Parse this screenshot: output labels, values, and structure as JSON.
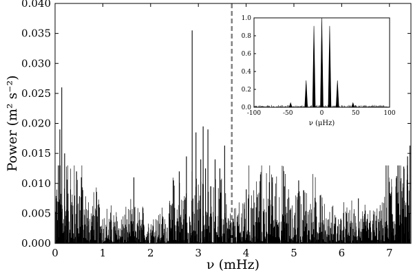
{
  "chart_data": [
    {
      "type": "line",
      "xlabel": "ν (mHz)",
      "ylabel": "Power (m² s⁻²)",
      "xlim": [
        0,
        7.45
      ],
      "ylim": [
        0,
        0.04
      ],
      "xticks": [
        0,
        1,
        2,
        3,
        4,
        5,
        6,
        7
      ],
      "yticks": [
        0.0,
        0.005,
        0.01,
        0.015,
        0.02,
        0.025,
        0.03,
        0.035,
        0.04
      ],
      "ytick_labels": [
        "0.000",
        "0.005",
        "0.010",
        "0.015",
        "0.020",
        "0.025",
        "0.030",
        "0.035",
        "0.040"
      ],
      "grid": false,
      "vertical_marker": {
        "x": 3.7,
        "style": "dashed",
        "color": "#808080"
      },
      "series": [
        {
          "color": "#000000",
          "x": [
            0.1,
            0.14,
            0.2,
            0.45,
            0.55,
            1.65,
            2.48,
            2.6,
            2.75,
            2.87,
            2.95,
            3.05,
            3.1,
            3.15,
            3.2,
            3.35,
            3.45,
            3.55,
            4.3,
            4.55,
            4.8,
            5.1,
            5.55,
            6.35,
            7.15,
            7.3,
            7.38,
            7.43
          ],
          "y": [
            0.019,
            0.026,
            0.015,
            0.012,
            0.011,
            0.011,
            0.0105,
            0.012,
            0.0145,
            0.0355,
            0.0185,
            0.014,
            0.0195,
            0.0125,
            0.019,
            0.014,
            0.0125,
            0.0163,
            0.0115,
            0.011,
            0.0095,
            0.0105,
            0.008,
            0.0075,
            0.0112,
            0.0128,
            0.0145,
            0.0163
          ]
        }
      ]
    },
    {
      "type": "line",
      "xlabel": "ν (μHz)",
      "ylabel": "",
      "xlim": [
        -100,
        100
      ],
      "ylim": [
        0,
        1.0
      ],
      "xticks": [
        -100,
        -50,
        0,
        50,
        100
      ],
      "yticks": [
        0.0,
        0.2,
        0.4,
        0.6,
        0.8,
        1.0
      ],
      "ytick_labels": [
        "0.0",
        "0.2",
        "0.4",
        "0.6",
        "0.8",
        "1.0"
      ],
      "grid": false,
      "series": [
        {
          "color": "#000000",
          "x": [
            -23.1,
            -11.6,
            0,
            11.6,
            23.1,
            -46,
            46
          ],
          "y": [
            0.3,
            0.91,
            1.0,
            0.91,
            0.3,
            0.05,
            0.05
          ]
        }
      ]
    }
  ]
}
